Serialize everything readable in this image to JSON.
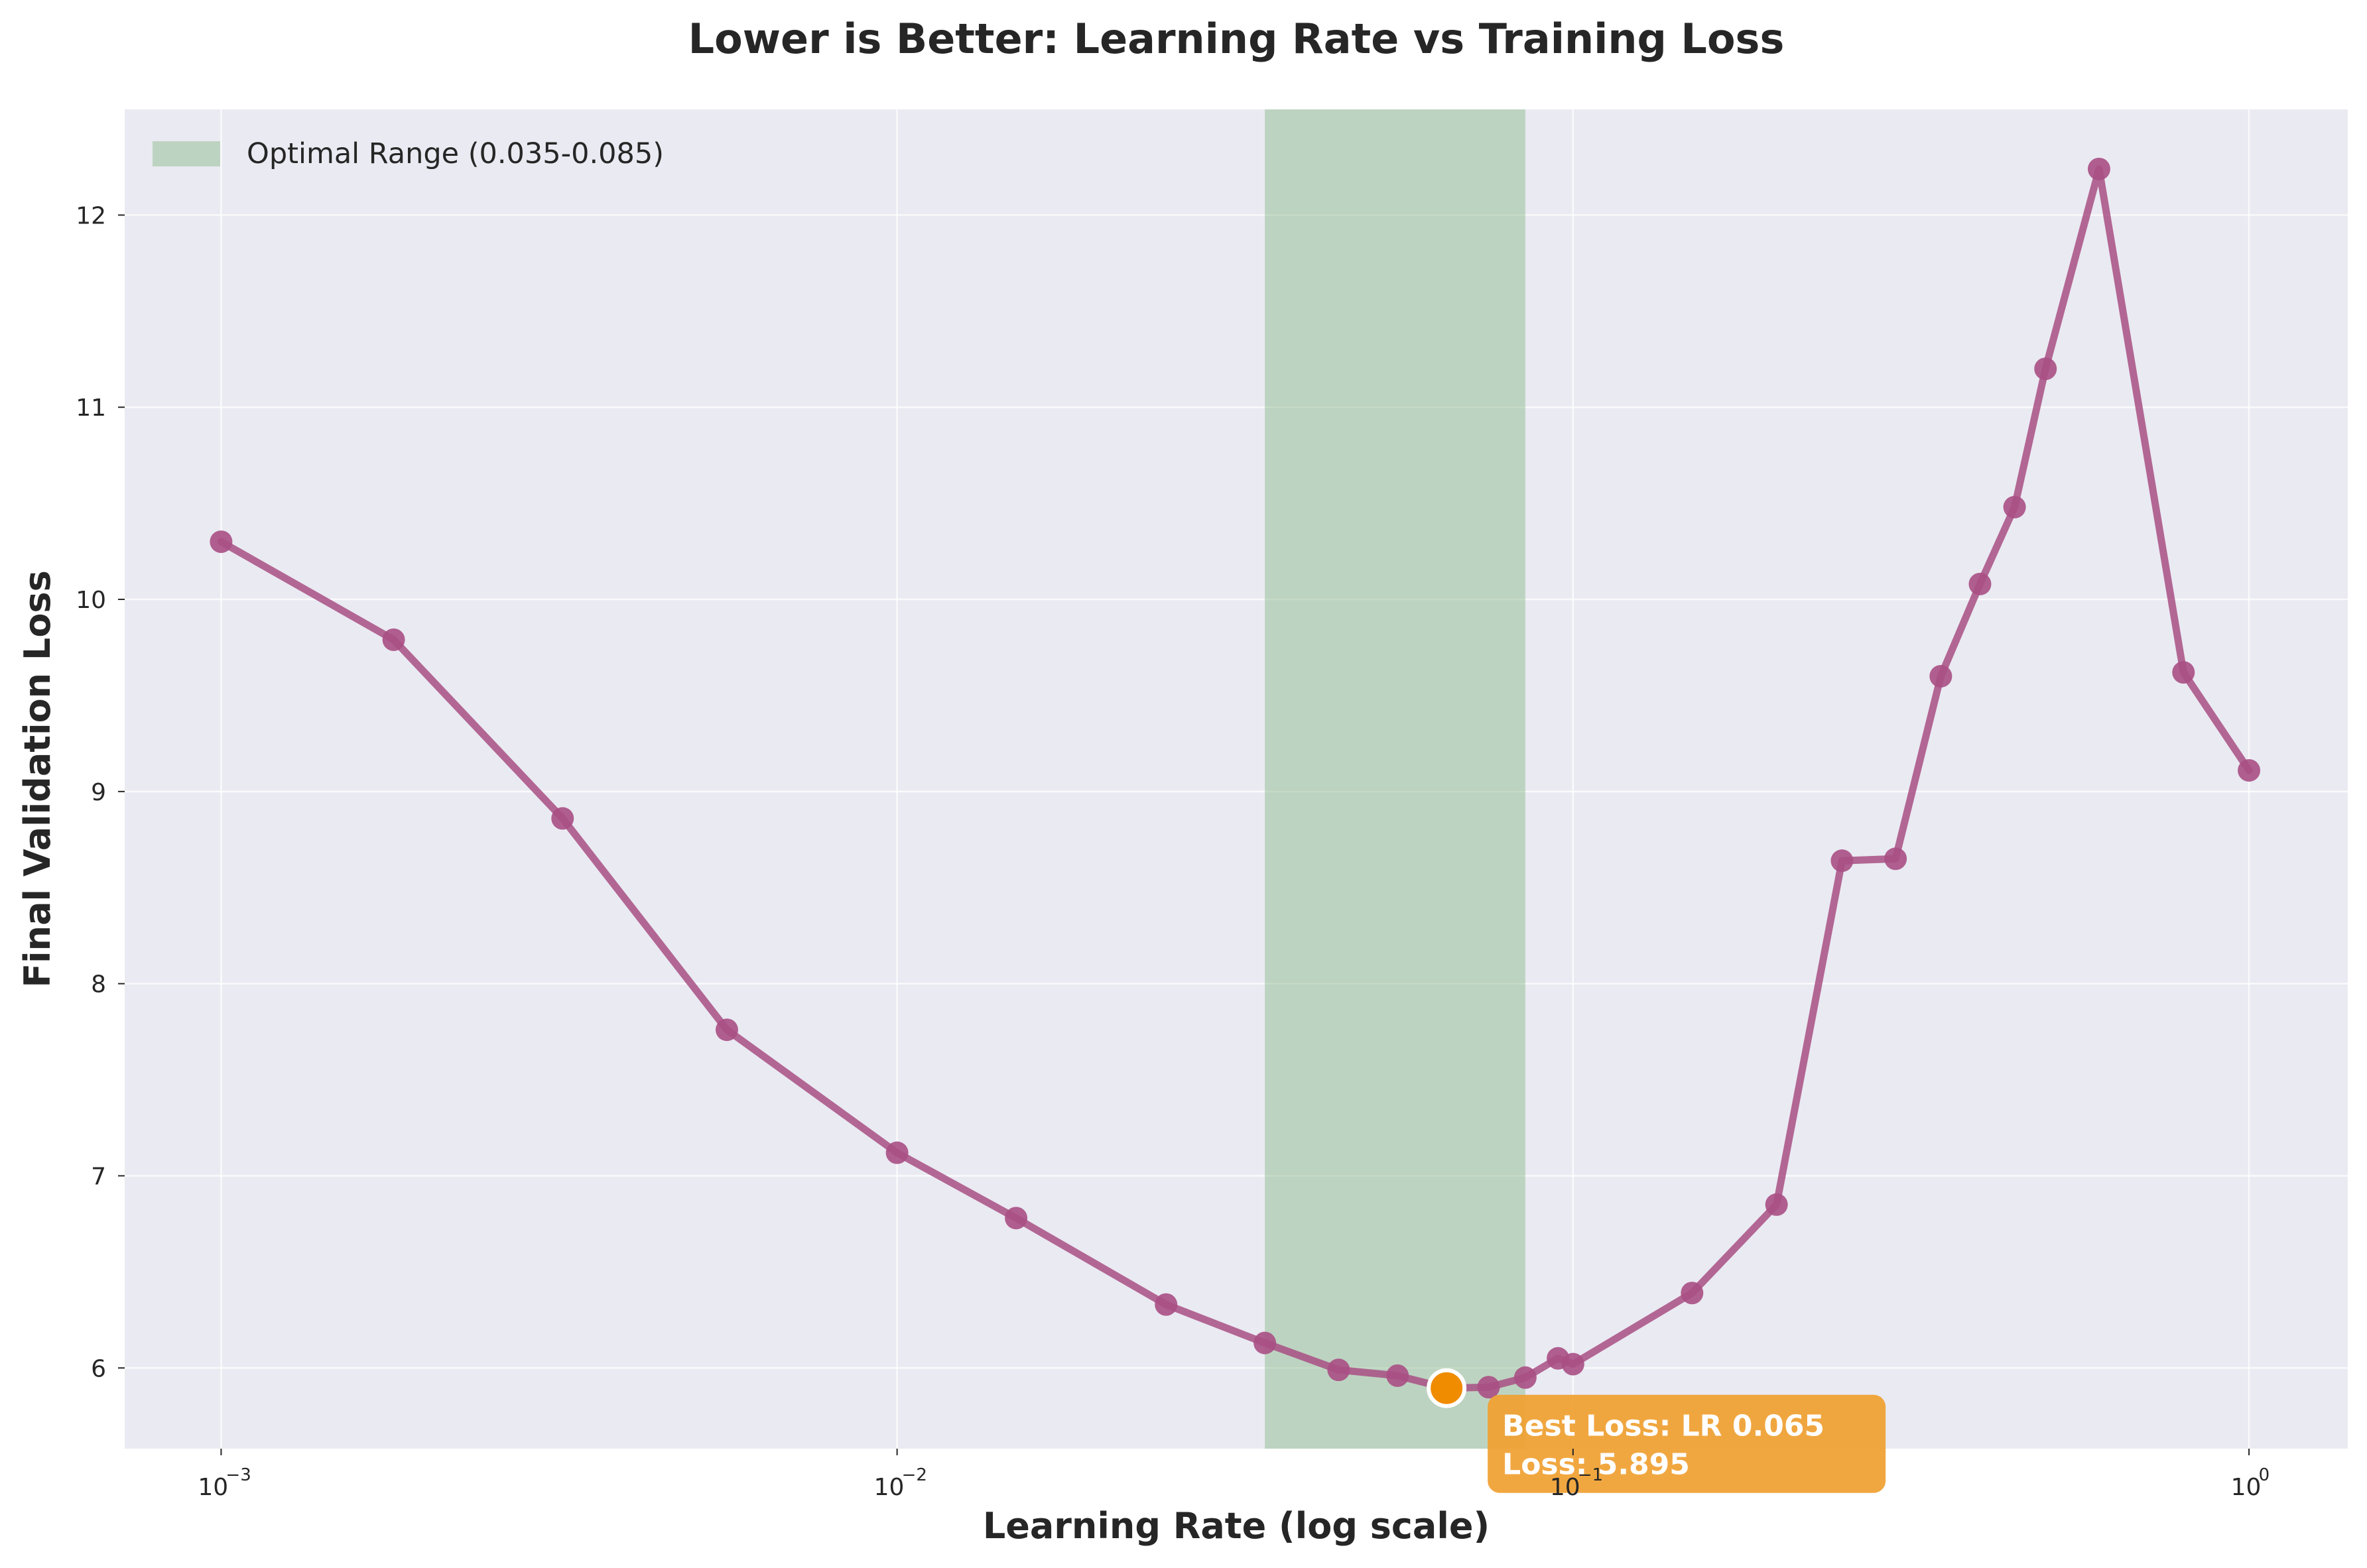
{
  "chart_data": {
    "type": "line",
    "title": "Lower is Better: Learning Rate vs Training Loss",
    "xlabel": "Learning Rate (log scale)",
    "ylabel": "Final Validation Loss",
    "x_scale": "log",
    "xlim": [
      0.00072,
      1.4
    ],
    "ylim": [
      5.58,
      12.55
    ],
    "grid": true,
    "x_ticks": [
      {
        "value": 0.001,
        "base": "10",
        "exp": "−3"
      },
      {
        "value": 0.01,
        "base": "10",
        "exp": "−2"
      },
      {
        "value": 0.1,
        "base": "10",
        "exp": "−1"
      },
      {
        "value": 1,
        "base": "10",
        "exp": "0"
      }
    ],
    "y_ticks": [
      6,
      7,
      8,
      9,
      10,
      11,
      12
    ],
    "series": [
      {
        "color": "#a84f84",
        "x": [
          0.001,
          0.0018,
          0.0032,
          0.0056,
          0.01,
          0.015,
          0.025,
          0.035,
          0.045,
          0.055,
          0.065,
          0.075,
          0.085,
          0.095,
          0.1,
          0.15,
          0.2,
          0.25,
          0.3,
          0.35,
          0.4,
          0.45,
          0.5,
          0.6,
          0.8,
          1.0
        ],
        "y": [
          10.3,
          9.79,
          8.86,
          7.76,
          7.12,
          6.78,
          6.33,
          6.13,
          5.99,
          5.96,
          5.895,
          5.9,
          5.95,
          6.05,
          6.02,
          6.39,
          6.85,
          8.64,
          8.65,
          9.6,
          10.08,
          10.48,
          11.2,
          12.24,
          9.62,
          9.11
        ]
      }
    ],
    "legend": {
      "position": "top-left",
      "entries": [
        {
          "label": "Optimal Range (0.035-0.085)",
          "color": "#8fbc8f"
        }
      ]
    },
    "shaded_range": {
      "x_start": 0.035,
      "x_end": 0.085,
      "color": "#8fbc8f"
    },
    "best_point": {
      "x": 0.065,
      "y": 5.895,
      "color": "#f08c00"
    },
    "annotation": {
      "line1": "Best Loss: LR 0.065",
      "line2": "Loss: 5.895",
      "color": "#f0a030"
    },
    "colors": {
      "plot_background": "#eaeaf2",
      "grid": "#ffffff",
      "line": "#a84f84"
    }
  }
}
